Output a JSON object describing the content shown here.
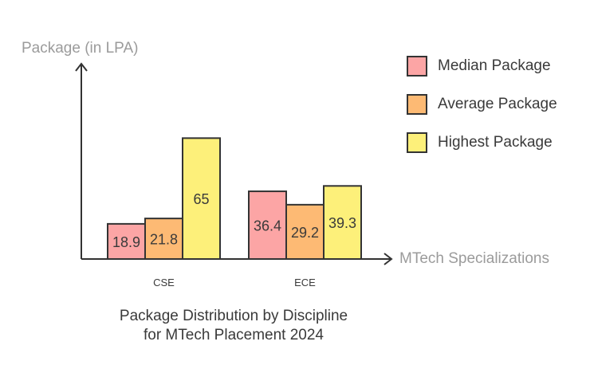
{
  "chart_data": {
    "type": "bar",
    "title": "Package Distribution by Discipline for MTech Placement 2024",
    "title_lines": [
      "Package Distribution by Discipline",
      "for MTech Placement 2024"
    ],
    "xlabel": "MTech Specializations",
    "ylabel": "Package (in LPA)",
    "categories": [
      "CSE",
      "ECE"
    ],
    "series": [
      {
        "name": "Median Package",
        "values": [
          18.9,
          36.4
        ],
        "color": "#fca5a5"
      },
      {
        "name": "Average Package",
        "values": [
          21.8,
          29.2
        ],
        "color": "#fdba74"
      },
      {
        "name": "Highest Package",
        "values": [
          65,
          39.3
        ],
        "color": "#fdf07a"
      }
    ],
    "ylim": [
      0,
      72
    ],
    "grid": false,
    "legend_position": "right",
    "axis_color": "#333333"
  }
}
